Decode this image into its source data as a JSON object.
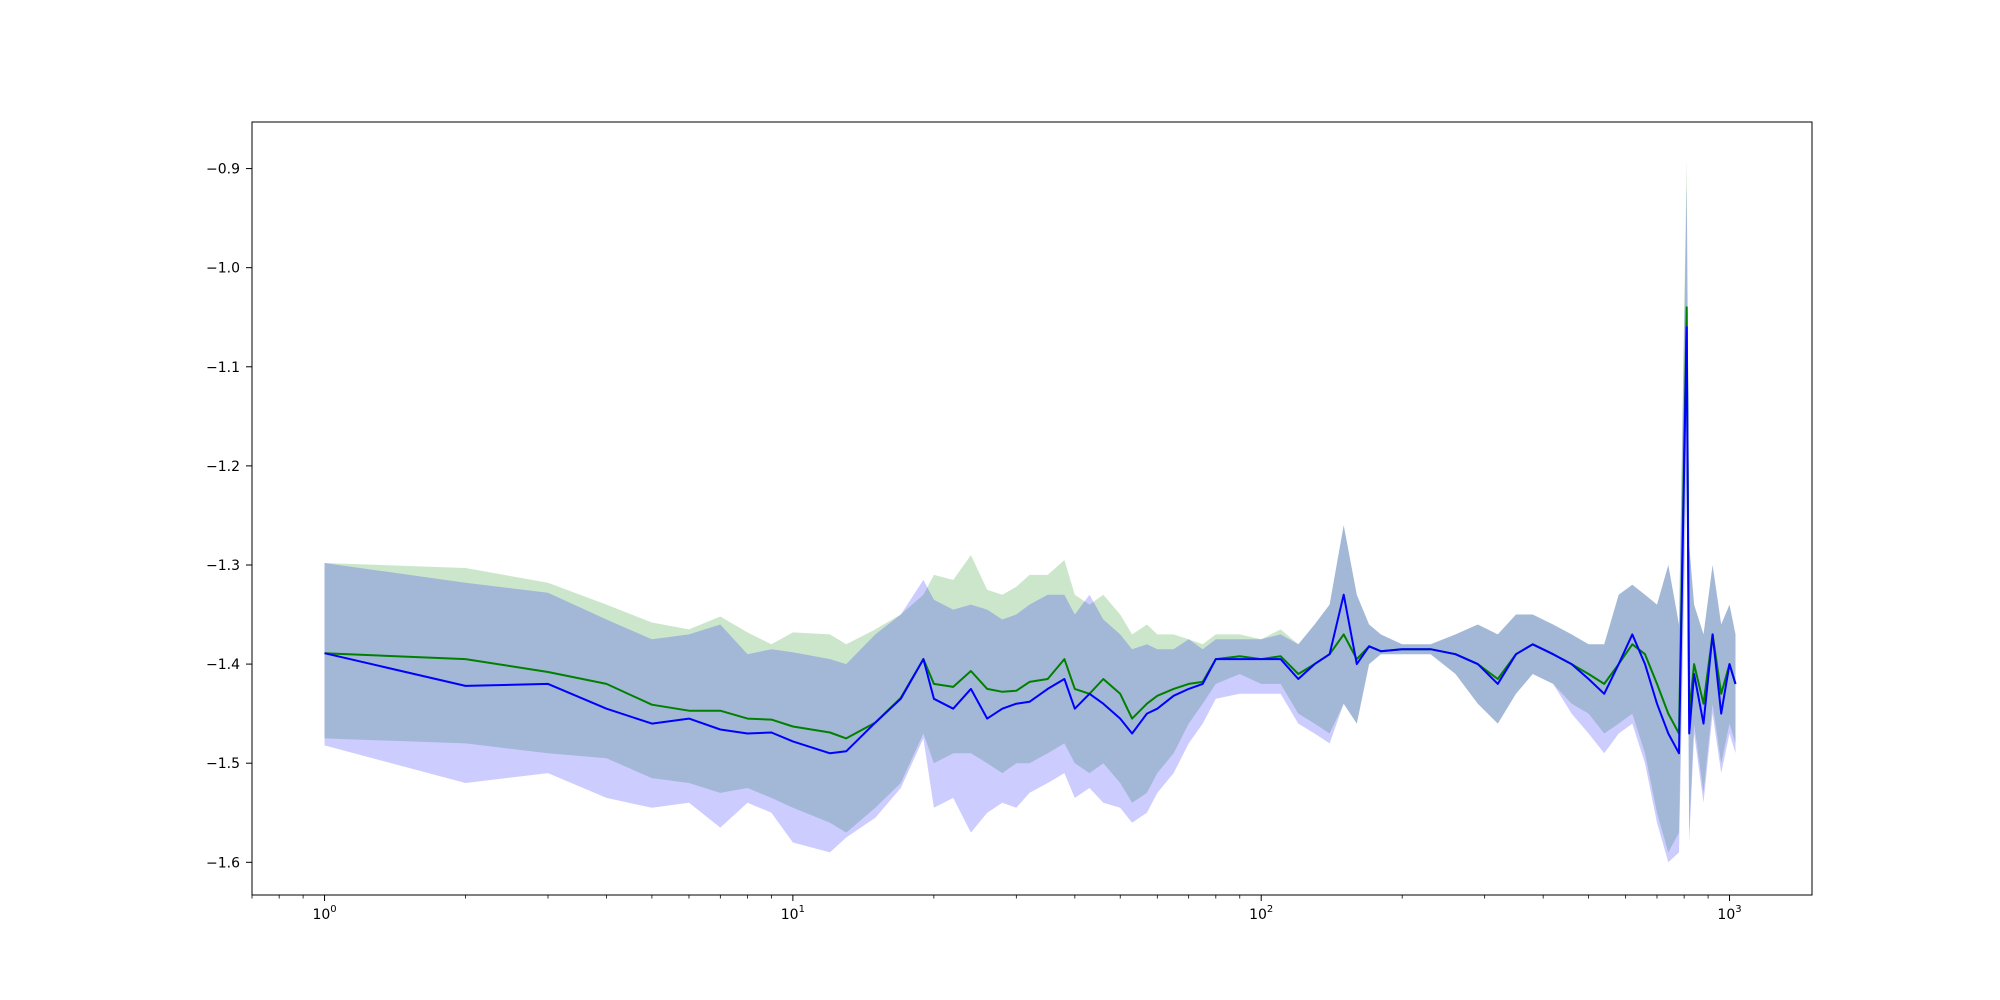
{
  "chart_data": {
    "type": "line",
    "title": "",
    "xlabel": "",
    "ylabel": "",
    "x_scale": "log",
    "xlim": [
      0.7,
      1500
    ],
    "ylim": [
      -1.633,
      -0.853
    ],
    "grid": false,
    "x_ticks": [
      {
        "value": 1,
        "base": "10",
        "exp": "0"
      },
      {
        "value": 10,
        "base": "10",
        "exp": "1"
      },
      {
        "value": 100,
        "base": "10",
        "exp": "2"
      },
      {
        "value": 1000,
        "base": "10",
        "exp": "3"
      }
    ],
    "y_ticks": [
      {
        "value": -0.9,
        "label": "−0.9"
      },
      {
        "value": -1.0,
        "label": "−1.0"
      },
      {
        "value": -1.1,
        "label": "−1.1"
      },
      {
        "value": -1.2,
        "label": "−1.2"
      },
      {
        "value": -1.3,
        "label": "−1.3"
      },
      {
        "value": -1.4,
        "label": "−1.4"
      },
      {
        "value": -1.5,
        "label": "−1.5"
      },
      {
        "value": -1.6,
        "label": "−1.6"
      }
    ],
    "series": [
      {
        "color": "#008000",
        "band_color": "#008000",
        "band_opacity": 0.2,
        "x": [
          1,
          2,
          3,
          4,
          5,
          6,
          7,
          8,
          9,
          10,
          12,
          13,
          15,
          17,
          19,
          20,
          22,
          24,
          26,
          28,
          30,
          32,
          35,
          38,
          40,
          43,
          46,
          50,
          53,
          57,
          60,
          65,
          70,
          75,
          80,
          90,
          100,
          110,
          120,
          130,
          140,
          150,
          160,
          170,
          180,
          200,
          230,
          260,
          290,
          320,
          350,
          380,
          420,
          460,
          500,
          540,
          580,
          620,
          660,
          700,
          740,
          780,
          810,
          820,
          840,
          880,
          920,
          960,
          1000,
          1030
        ],
        "mean": [
          -1.389,
          -1.395,
          -1.408,
          -1.42,
          -1.441,
          -1.447,
          -1.447,
          -1.455,
          -1.456,
          -1.463,
          -1.469,
          -1.475,
          -1.459,
          -1.434,
          -1.395,
          -1.42,
          -1.423,
          -1.407,
          -1.425,
          -1.428,
          -1.427,
          -1.418,
          -1.415,
          -1.395,
          -1.425,
          -1.43,
          -1.415,
          -1.43,
          -1.455,
          -1.44,
          -1.432,
          -1.425,
          -1.42,
          -1.418,
          -1.395,
          -1.392,
          -1.395,
          -1.392,
          -1.41,
          -1.4,
          -1.39,
          -1.37,
          -1.395,
          -1.382,
          -1.387,
          -1.385,
          -1.385,
          -1.39,
          -1.4,
          -1.415,
          -1.39,
          -1.38,
          -1.39,
          -1.4,
          -1.41,
          -1.42,
          -1.4,
          -1.38,
          -1.39,
          -1.42,
          -1.45,
          -1.47,
          -1.04,
          -1.45,
          -1.4,
          -1.44,
          -1.37,
          -1.43,
          -1.4,
          -1.42
        ],
        "upper": [
          -1.298,
          -1.303,
          -1.318,
          -1.34,
          -1.358,
          -1.365,
          -1.352,
          -1.368,
          -1.38,
          -1.368,
          -1.37,
          -1.38,
          -1.365,
          -1.35,
          -1.33,
          -1.31,
          -1.315,
          -1.29,
          -1.325,
          -1.33,
          -1.322,
          -1.31,
          -1.31,
          -1.295,
          -1.33,
          -1.34,
          -1.33,
          -1.35,
          -1.37,
          -1.36,
          -1.37,
          -1.37,
          -1.375,
          -1.38,
          -1.37,
          -1.37,
          -1.375,
          -1.365,
          -1.38,
          -1.36,
          -1.34,
          -1.26,
          -1.33,
          -1.36,
          -1.37,
          -1.38,
          -1.38,
          -1.37,
          -1.36,
          -1.37,
          -1.35,
          -1.35,
          -1.36,
          -1.37,
          -1.38,
          -1.38,
          -1.33,
          -1.32,
          -1.33,
          -1.34,
          -1.3,
          -1.36,
          -0.89,
          -1.28,
          -1.34,
          -1.37,
          -1.3,
          -1.36,
          -1.34,
          -1.37
        ],
        "lower": [
          -1.475,
          -1.48,
          -1.49,
          -1.495,
          -1.515,
          -1.52,
          -1.53,
          -1.525,
          -1.535,
          -1.545,
          -1.56,
          -1.57,
          -1.545,
          -1.52,
          -1.47,
          -1.5,
          -1.49,
          -1.49,
          -1.5,
          -1.51,
          -1.5,
          -1.5,
          -1.49,
          -1.48,
          -1.5,
          -1.51,
          -1.5,
          -1.52,
          -1.54,
          -1.53,
          -1.51,
          -1.49,
          -1.46,
          -1.44,
          -1.42,
          -1.41,
          -1.42,
          -1.42,
          -1.45,
          -1.46,
          -1.47,
          -1.44,
          -1.46,
          -1.4,
          -1.39,
          -1.39,
          -1.39,
          -1.41,
          -1.44,
          -1.46,
          -1.43,
          -1.41,
          -1.42,
          -1.44,
          -1.45,
          -1.47,
          -1.46,
          -1.45,
          -1.49,
          -1.55,
          -1.59,
          -1.57,
          -1.14,
          -1.57,
          -1.46,
          -1.53,
          -1.44,
          -1.5,
          -1.46,
          -1.48
        ]
      },
      {
        "color": "#0000ff",
        "band_color": "#0000ff",
        "band_opacity": 0.2,
        "x": [
          1,
          2,
          3,
          4,
          5,
          6,
          7,
          8,
          9,
          10,
          12,
          13,
          15,
          17,
          19,
          20,
          22,
          24,
          26,
          28,
          30,
          32,
          35,
          38,
          40,
          43,
          46,
          50,
          53,
          57,
          60,
          65,
          70,
          75,
          80,
          90,
          100,
          110,
          120,
          130,
          140,
          150,
          160,
          170,
          180,
          200,
          230,
          260,
          290,
          320,
          350,
          380,
          420,
          460,
          500,
          540,
          580,
          620,
          660,
          700,
          740,
          780,
          810,
          820,
          840,
          880,
          920,
          960,
          1000,
          1030
        ],
        "mean": [
          -1.389,
          -1.422,
          -1.42,
          -1.445,
          -1.46,
          -1.455,
          -1.466,
          -1.47,
          -1.469,
          -1.478,
          -1.49,
          -1.488,
          -1.459,
          -1.435,
          -1.395,
          -1.435,
          -1.445,
          -1.425,
          -1.455,
          -1.445,
          -1.44,
          -1.438,
          -1.425,
          -1.415,
          -1.445,
          -1.43,
          -1.44,
          -1.455,
          -1.47,
          -1.45,
          -1.445,
          -1.432,
          -1.425,
          -1.42,
          -1.395,
          -1.395,
          -1.395,
          -1.395,
          -1.415,
          -1.4,
          -1.39,
          -1.33,
          -1.4,
          -1.382,
          -1.387,
          -1.385,
          -1.385,
          -1.39,
          -1.4,
          -1.42,
          -1.39,
          -1.38,
          -1.39,
          -1.4,
          -1.415,
          -1.43,
          -1.4,
          -1.37,
          -1.4,
          -1.44,
          -1.47,
          -1.49,
          -1.06,
          -1.47,
          -1.41,
          -1.46,
          -1.37,
          -1.45,
          -1.4,
          -1.42
        ],
        "upper": [
          -1.298,
          -1.318,
          -1.328,
          -1.355,
          -1.375,
          -1.37,
          -1.36,
          -1.39,
          -1.385,
          -1.388,
          -1.395,
          -1.4,
          -1.37,
          -1.35,
          -1.315,
          -1.335,
          -1.345,
          -1.34,
          -1.345,
          -1.355,
          -1.35,
          -1.34,
          -1.33,
          -1.33,
          -1.35,
          -1.33,
          -1.355,
          -1.37,
          -1.385,
          -1.38,
          -1.385,
          -1.385,
          -1.375,
          -1.385,
          -1.375,
          -1.375,
          -1.375,
          -1.37,
          -1.38,
          -1.36,
          -1.34,
          -1.26,
          -1.33,
          -1.36,
          -1.37,
          -1.38,
          -1.38,
          -1.37,
          -1.36,
          -1.37,
          -1.35,
          -1.35,
          -1.36,
          -1.37,
          -1.38,
          -1.38,
          -1.33,
          -1.32,
          -1.33,
          -1.34,
          -1.3,
          -1.36,
          -0.915,
          -1.28,
          -1.34,
          -1.37,
          -1.3,
          -1.36,
          -1.34,
          -1.37
        ],
        "lower": [
          -1.482,
          -1.52,
          -1.51,
          -1.535,
          -1.545,
          -1.54,
          -1.565,
          -1.54,
          -1.55,
          -1.58,
          -1.59,
          -1.575,
          -1.555,
          -1.525,
          -1.475,
          -1.545,
          -1.535,
          -1.57,
          -1.55,
          -1.54,
          -1.545,
          -1.53,
          -1.52,
          -1.51,
          -1.535,
          -1.525,
          -1.54,
          -1.545,
          -1.56,
          -1.55,
          -1.53,
          -1.51,
          -1.48,
          -1.46,
          -1.435,
          -1.43,
          -1.43,
          -1.43,
          -1.46,
          -1.47,
          -1.48,
          -1.44,
          -1.46,
          -1.4,
          -1.39,
          -1.39,
          -1.39,
          -1.41,
          -1.44,
          -1.46,
          -1.43,
          -1.41,
          -1.42,
          -1.45,
          -1.47,
          -1.49,
          -1.47,
          -1.46,
          -1.5,
          -1.56,
          -1.6,
          -1.59,
          -1.2,
          -1.58,
          -1.47,
          -1.54,
          -1.45,
          -1.51,
          -1.47,
          -1.49
        ]
      }
    ]
  }
}
